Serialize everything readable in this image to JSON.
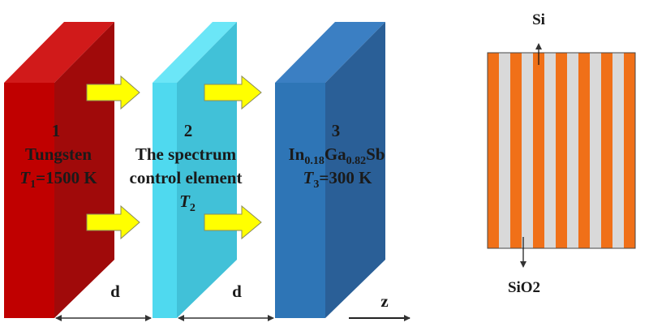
{
  "colors": {
    "tungsten_front": "#C00000",
    "tungsten_side": "#A00A0A",
    "tungsten_top": "#D11A1A",
    "control_front": "#4FD9EF",
    "control_side": "#41C1D8",
    "control_top": "#6BE6F7",
    "detector_front": "#2E75B6",
    "detector_side": "#2A5F97",
    "detector_top": "#3B7FC3",
    "arrow_fill": "#FFFF00",
    "arrow_stroke": "#8A8A5C",
    "sio2_fill": "#F07018",
    "si_fill": "#D9D9D9"
  },
  "blocks": [
    {
      "number": "1",
      "name": "Tungsten",
      "temp_symbol": "T",
      "temp_sub": "1",
      "temp_value": "=1500 K"
    },
    {
      "number": "2",
      "line1": "The spectrum",
      "line2": "control element",
      "temp_symbol": "T",
      "temp_sub": "2"
    },
    {
      "number": "3",
      "formula": {
        "el1": "In",
        "sub1": "0.18",
        "el2": "Ga",
        "sub2": "0.82",
        "el3": "Sb"
      },
      "temp_symbol": "T",
      "temp_sub": "3",
      "temp_value": "=300 K"
    }
  ],
  "gap_labels": [
    "d",
    "d"
  ],
  "axis_label": "z",
  "grating": {
    "top_label": "Si",
    "bottom_label": "SiO2",
    "stripes": [
      "sio2",
      "si",
      "sio2",
      "si",
      "sio2",
      "si",
      "sio2",
      "si",
      "sio2",
      "si",
      "sio2",
      "si",
      "sio2"
    ]
  }
}
